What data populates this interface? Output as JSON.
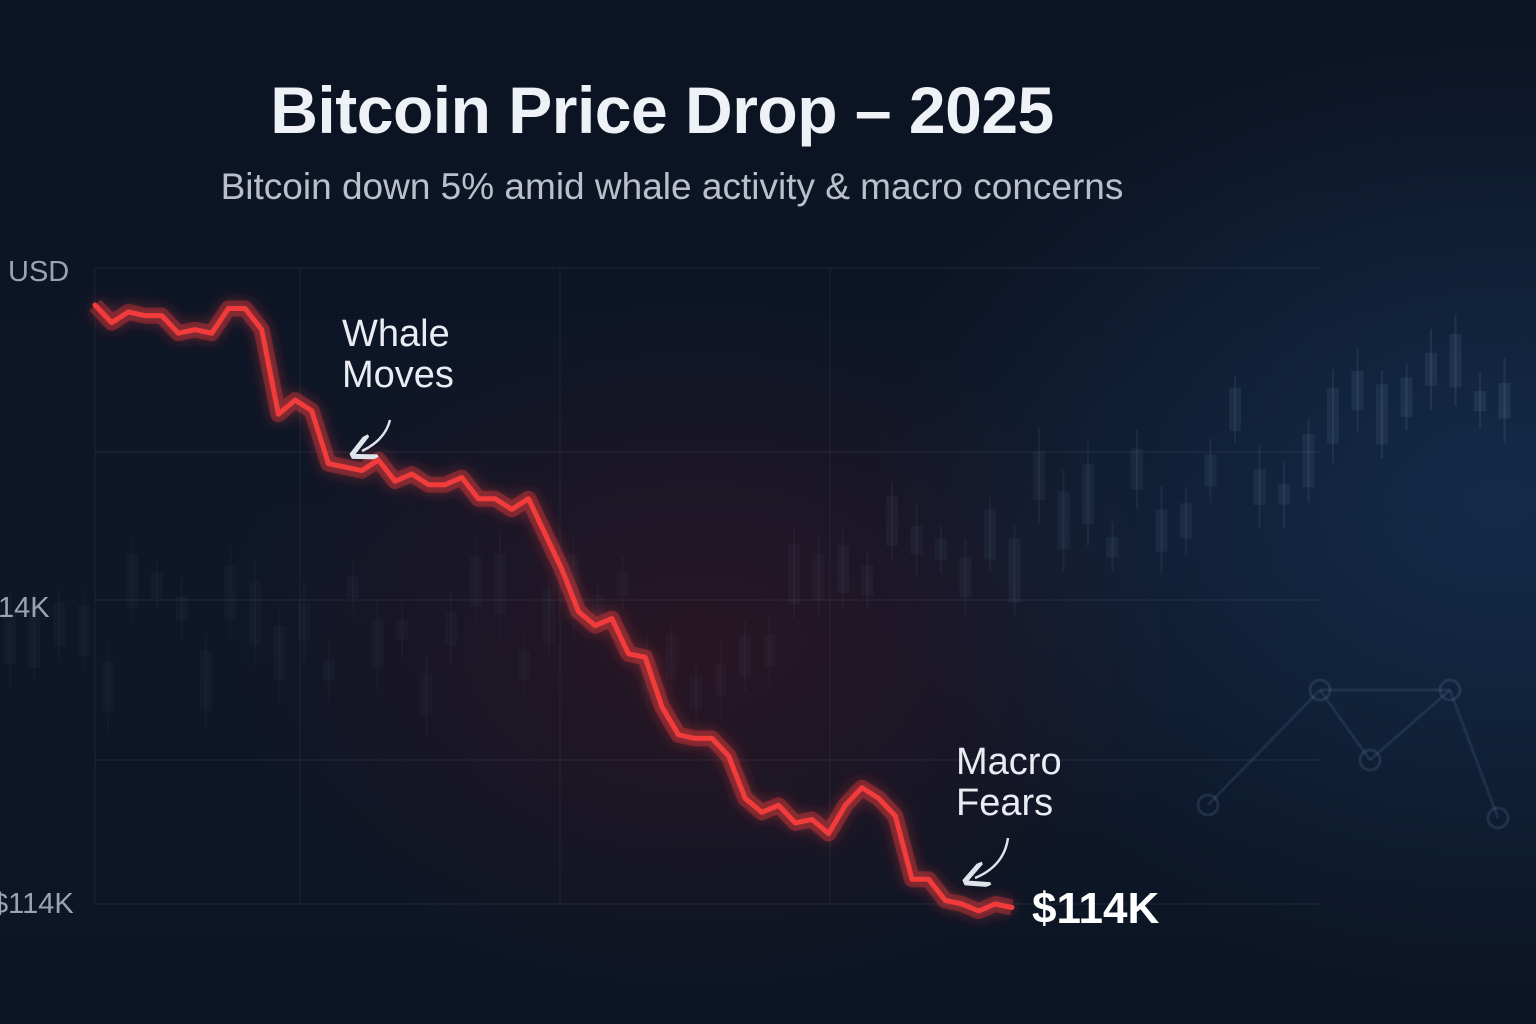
{
  "chart_data": {
    "type": "line",
    "title": "Bitcoin Price Drop – 2025",
    "subtitle": "Bitcoin down 5% amid whale activity & macro concerns",
    "ylabel": "USD",
    "xlabel": "",
    "y_tick_labels": [
      "14K",
      "$114K"
    ],
    "grid": true,
    "legend": "none",
    "series": [
      {
        "name": "Bitcoin price",
        "color": "#f23b3b",
        "values": [
          100,
          97.5,
          99,
          98.5,
          98.5,
          96,
          96.5,
          96,
          99.5,
          99.5,
          96.5,
          84.5,
          86.5,
          85,
          77.5,
          77,
          76.5,
          78,
          75,
          76,
          74.5,
          74.5,
          75.5,
          72.5,
          72.5,
          71,
          72.5,
          67.5,
          62.5,
          56.5,
          54.5,
          55.5,
          50.5,
          50,
          43,
          39,
          38.5,
          38.5,
          36,
          30,
          28,
          29,
          26.5,
          27,
          25,
          29,
          31.5,
          30,
          27.5,
          18.5,
          18.5,
          15.5,
          15,
          14,
          15,
          14.5
        ]
      }
    ],
    "annotations": [
      {
        "label": "Whale Moves",
        "lines": [
          "Whale",
          "Moves"
        ],
        "x_index": 11
      },
      {
        "label": "Macro Fears",
        "lines": [
          "Macro",
          "Fears"
        ],
        "x_index": 52
      }
    ],
    "end_label": "$114K"
  }
}
